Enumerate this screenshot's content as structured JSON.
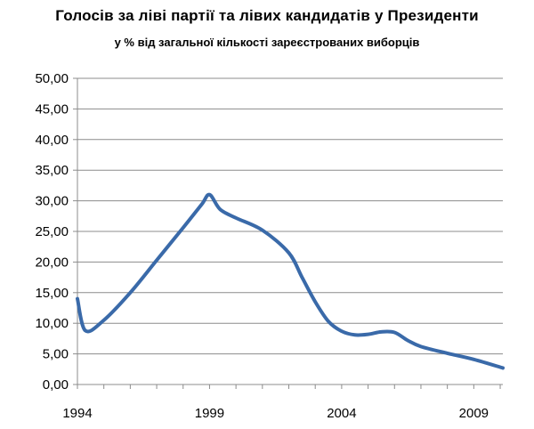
{
  "chart_data": {
    "type": "line",
    "title": "Голосів за ліві партії та лівих кандидатів у Президенти",
    "subtitle": "у % від загальної кількості зареєстрованих виборців",
    "xlabel": "",
    "ylabel": "",
    "xlim": [
      1994,
      2010.1
    ],
    "ylim": [
      0,
      50
    ],
    "grid": true,
    "x_ticks": [
      "1994",
      "1999",
      "2004",
      "2009"
    ],
    "y_ticks": [
      "0,00",
      "5,00",
      "10,00",
      "15,00",
      "20,00",
      "25,00",
      "30,00",
      "35,00",
      "40,00",
      "45,00",
      "50,00"
    ],
    "series": [
      {
        "color": "#3a6aa9",
        "points": [
          [
            1994.0,
            14.0
          ],
          [
            1994.3,
            8.8
          ],
          [
            1995.0,
            10.5
          ],
          [
            1996.0,
            15.0
          ],
          [
            1997.0,
            20.3
          ],
          [
            1998.0,
            25.6
          ],
          [
            1998.7,
            29.4
          ],
          [
            1999.0,
            31.0
          ],
          [
            1999.4,
            28.6
          ],
          [
            2000.0,
            27.2
          ],
          [
            2001.0,
            25.2
          ],
          [
            2002.0,
            21.5
          ],
          [
            2002.5,
            17.5
          ],
          [
            2003.0,
            13.5
          ],
          [
            2003.5,
            10.3
          ],
          [
            2004.0,
            8.7
          ],
          [
            2004.5,
            8.1
          ],
          [
            2005.0,
            8.2
          ],
          [
            2005.5,
            8.6
          ],
          [
            2006.0,
            8.5
          ],
          [
            2006.5,
            7.2
          ],
          [
            2007.0,
            6.2
          ],
          [
            2008.0,
            5.1
          ],
          [
            2009.0,
            4.1
          ],
          [
            2010.1,
            2.7
          ]
        ]
      }
    ]
  }
}
